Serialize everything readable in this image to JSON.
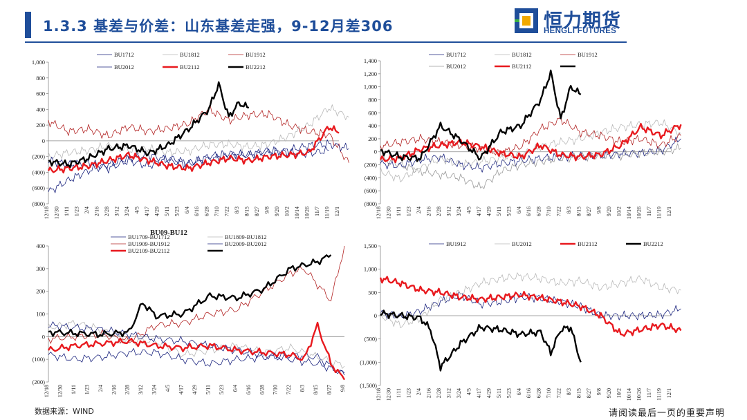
{
  "header": {
    "title": "1.3.3 基差与价差：山东基差走强，9-12月差306",
    "logo_text": "恒力期货",
    "logo_sub": "HENGLI FUTURES"
  },
  "footer": {
    "source": "数据来源：WIND",
    "disclaimer": "请阅读最后一页的重要声明"
  },
  "colors": {
    "brand": "#1f4e9a",
    "red": "#e8191e",
    "darkred": "#b22222",
    "navy": "#1a237e",
    "grey": "#b0b0b0",
    "black": "#000000"
  },
  "chart_data": [
    {
      "type": "line",
      "title": "",
      "xlabel": "",
      "ylabel": "",
      "ylim": [
        -800,
        1000
      ],
      "yticks": [
        "1,000",
        "800",
        "600",
        "400",
        "200",
        "0",
        "(200)",
        "(400)",
        "(600)",
        "(800)"
      ],
      "xticks": [
        "12/18",
        "12/30",
        "1/11",
        "1/23",
        "2/4",
        "2/16",
        "2/28",
        "3/12",
        "3/24",
        "4/5",
        "4/17",
        "4/29",
        "5/11",
        "5/23",
        "6/4",
        "6/16",
        "6/28",
        "7/10",
        "7/22",
        "8/3",
        "8/15",
        "8/27",
        "9/8",
        "9/20",
        "10/2",
        "10/14",
        "10/26",
        "11/7",
        "11/19",
        "12/1"
      ],
      "legend": "top",
      "series": [
        {
          "name": "BU1712",
          "color": "#1a237e",
          "width": 0.8,
          "x": [
            0,
            2,
            4,
            6,
            8,
            10,
            12,
            14,
            16,
            18,
            20,
            22,
            24,
            26,
            28
          ],
          "values": [
            -650,
            -500,
            -380,
            -300,
            -220,
            -180,
            -250,
            -300,
            -200,
            -160,
            -180,
            -120,
            -150,
            -160,
            -120
          ]
        },
        {
          "name": "BU1812",
          "color": "#b8b8b8",
          "width": 0.8,
          "x": [
            0,
            2,
            4,
            6,
            8,
            10,
            12,
            14,
            16,
            18,
            20,
            22,
            24,
            26,
            28,
            30
          ],
          "values": [
            -200,
            -150,
            -120,
            -60,
            -120,
            -100,
            -150,
            -130,
            -50,
            -40,
            -80,
            -40,
            60,
            200,
            420,
            300
          ]
        },
        {
          "name": "BU1912",
          "color": "#b22222",
          "width": 0.8,
          "x": [
            0,
            2,
            4,
            6,
            8,
            10,
            12,
            14,
            16,
            18,
            20,
            22,
            24,
            26,
            28,
            30
          ],
          "values": [
            250,
            120,
            150,
            60,
            180,
            120,
            160,
            220,
            400,
            260,
            330,
            340,
            200,
            120,
            80,
            -280
          ]
        },
        {
          "name": "BU2012",
          "color": "#1a237e",
          "width": 0.8,
          "x": [
            0,
            2,
            4,
            6,
            8,
            10,
            12,
            14,
            16,
            18,
            20,
            22,
            24,
            26,
            28,
            30
          ],
          "values": [
            -250,
            -300,
            -280,
            -350,
            -250,
            -320,
            -220,
            -280,
            -230,
            -200,
            -180,
            -150,
            -120,
            -60,
            -40,
            -100
          ]
        },
        {
          "name": "BU2112",
          "color": "#e8191e",
          "width": 2.4,
          "x": [
            0,
            2,
            4,
            6,
            8,
            10,
            12,
            14,
            16,
            18,
            20,
            22,
            24,
            26,
            28,
            29
          ],
          "values": [
            -380,
            -350,
            -320,
            -250,
            -180,
            -250,
            -320,
            -350,
            -280,
            -220,
            -250,
            -200,
            -180,
            -150,
            180,
            100
          ]
        },
        {
          "name": "BU2212",
          "color": "#000000",
          "width": 2.4,
          "x": [
            0,
            2,
            4,
            6,
            8,
            10,
            12,
            14,
            16,
            17,
            18,
            19,
            20
          ],
          "values": [
            -260,
            -300,
            -220,
            -100,
            -60,
            -160,
            -50,
            150,
            400,
            720,
            300,
            480,
            420
          ]
        }
      ]
    },
    {
      "type": "line",
      "title": "",
      "xlabel": "",
      "ylabel": "",
      "ylim": [
        -800,
        1400
      ],
      "yticks": [
        "1,400",
        "1,200",
        "1,000",
        "800",
        "600",
        "400",
        "200",
        "0",
        "(200)",
        "(400)",
        "(600)",
        "(800)"
      ],
      "xticks": [
        "12/18",
        "12/30",
        "1/11",
        "1/23",
        "2/4",
        "2/16",
        "2/28",
        "3/12",
        "3/24",
        "4/5",
        "4/17",
        "4/29",
        "5/11",
        "5/23",
        "6/4",
        "6/16",
        "6/28",
        "7/10",
        "7/22",
        "8/3",
        "8/15",
        "8/27",
        "9/8",
        "9/20",
        "10/2",
        "10/14",
        "10/26",
        "11/7",
        "11/19",
        "12/1"
      ],
      "legend": "top",
      "series": [
        {
          "name": "BU1712",
          "color": "#1a237e",
          "width": 0.8,
          "x": [
            0,
            2,
            4,
            6,
            8,
            10,
            12,
            14,
            16,
            18,
            20,
            22,
            24,
            26,
            28,
            30
          ],
          "values": [
            -180,
            -220,
            -120,
            -80,
            -200,
            -250,
            -180,
            -140,
            -100,
            -80,
            -60,
            -60,
            -30,
            -20,
            20,
            200
          ]
        },
        {
          "name": "BU1812",
          "color": "#b8b8b8",
          "width": 0.8,
          "x": [
            0,
            2,
            4,
            6,
            8,
            10,
            12,
            14,
            16,
            18,
            20,
            22,
            24,
            26,
            28,
            30
          ],
          "values": [
            -300,
            -420,
            -250,
            -100,
            -200,
            -150,
            -100,
            -50,
            80,
            150,
            200,
            300,
            380,
            420,
            450,
            280
          ]
        },
        {
          "name": "BU1912",
          "color": "#b22222",
          "width": 0.8,
          "x": [
            0,
            2,
            4,
            6,
            8,
            10,
            12,
            14,
            16,
            18,
            20,
            22,
            24,
            26,
            28,
            30
          ],
          "values": [
            80,
            150,
            200,
            150,
            100,
            50,
            -20,
            80,
            350,
            500,
            300,
            250,
            150,
            200,
            100,
            250
          ]
        },
        {
          "name": "BU2012",
          "color": "#9a9a9a",
          "width": 0.8,
          "x": [
            0,
            2,
            4,
            6,
            8,
            10,
            12,
            14,
            16,
            18,
            20,
            22,
            24,
            26,
            28,
            30
          ],
          "values": [
            -100,
            -200,
            -300,
            -350,
            -400,
            -550,
            -300,
            -200,
            -150,
            -100,
            -80,
            -60,
            -60,
            -20,
            0,
            60
          ]
        },
        {
          "name": "BU2112",
          "color": "#e8191e",
          "width": 2.4,
          "x": [
            0,
            2,
            4,
            6,
            8,
            10,
            12,
            14,
            16,
            18,
            20,
            22,
            24,
            26,
            28,
            30
          ],
          "values": [
            -120,
            -100,
            40,
            100,
            150,
            80,
            -20,
            -80,
            100,
            -50,
            -80,
            -40,
            100,
            380,
            250,
            420
          ]
        },
        {
          "name": "",
          "color": "#000000",
          "width": 2.4,
          "x": [
            0,
            2,
            4,
            6,
            8,
            10,
            12,
            14,
            16,
            17,
            18,
            19,
            20
          ],
          "values": [
            20,
            -80,
            -100,
            400,
            180,
            -100,
            300,
            400,
            800,
            1220,
            500,
            1000,
            880
          ]
        }
      ]
    },
    {
      "type": "line",
      "title": "BU09-BU12",
      "xlabel": "",
      "ylabel": "",
      "ylim": [
        -200,
        400
      ],
      "yticks": [
        "400",
        "300",
        "200",
        "100",
        "0",
        "(100)",
        "(200)"
      ],
      "xticks": [
        "12/18",
        "12/30",
        "1/11",
        "1/23",
        "2/4",
        "2/16",
        "2/28",
        "3/12",
        "3/24",
        "4/5",
        "4/17",
        "4/29",
        "5/11",
        "5/23",
        "6/4",
        "6/16",
        "6/28",
        "7/10",
        "7/22",
        "8/3",
        "8/15",
        "8/27",
        "9/8"
      ],
      "legend": "top",
      "series": [
        {
          "name": "BU1709-BU1712",
          "color": "#1a237e",
          "width": 0.8,
          "x": [
            0,
            2,
            4,
            6,
            8,
            10,
            12,
            14,
            16,
            18,
            20,
            22
          ],
          "values": [
            -80,
            -100,
            -90,
            -70,
            -70,
            -100,
            -120,
            -100,
            -90,
            -80,
            -90,
            -170
          ]
        },
        {
          "name": "BU1809-BU1812",
          "color": "#b8b8b8",
          "width": 0.8,
          "x": [
            0,
            2,
            4,
            6,
            8,
            10,
            12,
            14,
            16,
            18,
            20,
            22
          ],
          "values": [
            40,
            60,
            30,
            -20,
            -20,
            -80,
            -60,
            -40,
            -70,
            -50,
            -90,
            -130
          ]
        },
        {
          "name": "BU1909-BU1912",
          "color": "#b22222",
          "width": 0.8,
          "x": [
            0,
            2,
            4,
            6,
            8,
            10,
            12,
            14,
            16,
            18,
            19,
            21,
            22
          ],
          "values": [
            -10,
            0,
            10,
            -20,
            50,
            60,
            100,
            120,
            200,
            280,
            300,
            160,
            400
          ]
        },
        {
          "name": "BU2009-BU2012",
          "color": "#1a237e",
          "width": 0.8,
          "x": [
            0,
            2,
            4,
            6,
            8,
            10,
            12,
            14,
            16,
            18,
            20,
            22
          ],
          "values": [
            50,
            40,
            30,
            10,
            -10,
            -20,
            -40,
            -60,
            -80,
            -100,
            -120,
            -160
          ]
        },
        {
          "name": "BU2109-BU2112",
          "color": "#e8191e",
          "width": 2.4,
          "x": [
            0,
            2,
            4,
            6,
            8,
            10,
            12,
            14,
            16,
            18,
            19,
            20,
            21,
            22
          ],
          "values": [
            -60,
            -40,
            -30,
            -20,
            -40,
            -50,
            -40,
            -60,
            -70,
            -80,
            -100,
            50,
            -120,
            -190
          ]
        },
        {
          "name": "",
          "color": "#000000",
          "width": 2.4,
          "x": [
            0,
            2,
            4,
            6,
            7,
            8,
            10,
            12,
            14,
            16,
            18,
            20,
            21
          ],
          "values": [
            20,
            15,
            10,
            20,
            150,
            90,
            100,
            180,
            170,
            210,
            300,
            330,
            360
          ]
        }
      ]
    },
    {
      "type": "line",
      "title": "",
      "xlabel": "",
      "ylabel": "",
      "ylim": [
        -1500,
        1500
      ],
      "yticks": [
        "1,500",
        "1,000",
        "500",
        "0",
        "(500)",
        "(1,000)",
        "(1,500)"
      ],
      "xticks": [
        "12/18",
        "12/30",
        "1/11",
        "1/23",
        "2/4",
        "2/16",
        "2/28",
        "3/12",
        "3/24",
        "4/5",
        "4/17",
        "4/29",
        "5/11",
        "5/23",
        "6/4",
        "6/16",
        "6/28",
        "7/10",
        "7/22",
        "8/3",
        "8/15",
        "8/27",
        "9/8",
        "9/20",
        "10/2",
        "10/14",
        "10/26",
        "11/7",
        "11/19",
        "12/1"
      ],
      "legend": "top",
      "series": [
        {
          "name": "BU1912",
          "color": "#1a237e",
          "width": 0.8,
          "x": [
            0,
            2,
            4,
            6,
            8,
            10,
            12,
            14,
            16,
            18,
            20,
            22,
            24,
            26,
            28,
            30
          ],
          "values": [
            50,
            -20,
            100,
            300,
            450,
            250,
            300,
            400,
            380,
            300,
            200,
            0,
            0,
            0,
            20,
            150
          ]
        },
        {
          "name": "BU2012",
          "color": "#b8b8b8",
          "width": 0.8,
          "x": [
            0,
            2,
            4,
            6,
            8,
            10,
            12,
            14,
            16,
            18,
            20,
            22,
            24,
            26,
            28,
            30
          ],
          "values": [
            0,
            -200,
            -50,
            350,
            500,
            700,
            800,
            850,
            800,
            700,
            750,
            600,
            700,
            800,
            600,
            550
          ]
        },
        {
          "name": "BU2112",
          "color": "#e8191e",
          "width": 2.4,
          "x": [
            0,
            2,
            4,
            6,
            8,
            10,
            12,
            14,
            16,
            18,
            20,
            22,
            24,
            26,
            28,
            30
          ],
          "values": [
            800,
            700,
            550,
            500,
            400,
            350,
            400,
            450,
            380,
            300,
            200,
            0,
            -400,
            -300,
            -200,
            -320
          ]
        },
        {
          "name": "BU2212",
          "color": "#000000",
          "width": 2.4,
          "x": [
            0,
            2,
            4,
            5,
            6,
            8,
            10,
            12,
            14,
            16,
            17,
            18,
            19,
            20
          ],
          "values": [
            50,
            0,
            -50,
            -300,
            -1100,
            -600,
            -250,
            -300,
            -400,
            -350,
            -800,
            -300,
            -250,
            -1000
          ]
        }
      ]
    }
  ]
}
